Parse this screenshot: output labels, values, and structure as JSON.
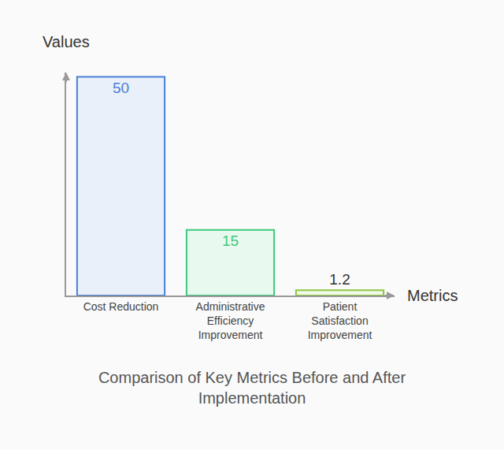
{
  "chart_data": {
    "type": "bar",
    "title": "Comparison of Key Metrics Before and After Implementation",
    "x_label": "Metrics",
    "y_label": "Values",
    "categories": [
      "Cost Reduction",
      "Administrative Efficiency Improvement",
      "Patient Satisfaction Improvement"
    ],
    "values": [
      50,
      15,
      1.2
    ],
    "colors": [
      "#4a7fd4",
      "#3ec97a",
      "#8cc63f"
    ],
    "ylim": [
      0,
      51
    ],
    "grid": false,
    "data_labels": true,
    "tick_labels": "x"
  }
}
